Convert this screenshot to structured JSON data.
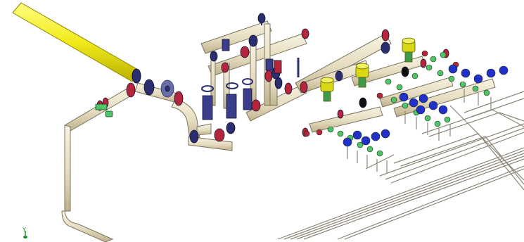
{
  "viewport": {
    "background": "#ffffff",
    "axis_indicator_label": "Y"
  },
  "colors": {
    "pipe_cream": "#ece4cc",
    "pipe_cream_shade": "#c9bd98",
    "pipe_outline": "#7a7560",
    "yellow_pipe": "#f2ea1a",
    "yellow_pipe_shade": "#b8b000",
    "flange_red": "#b5253c",
    "flange_navy": "#2b2f70",
    "valve_green": "#4fc468",
    "valve_blue": "#2130c8",
    "actuator_yellow": "#d9d817",
    "small_line": "#8a8676",
    "axis_green": "#1b8f2b"
  },
  "icons": {
    "axis_indicator": "axis-triad-icon",
    "gate_valve": "gate-valve-icon",
    "control_valve": "control-valve-actuator-icon",
    "hand_wheel": "hand-wheel-icon"
  }
}
